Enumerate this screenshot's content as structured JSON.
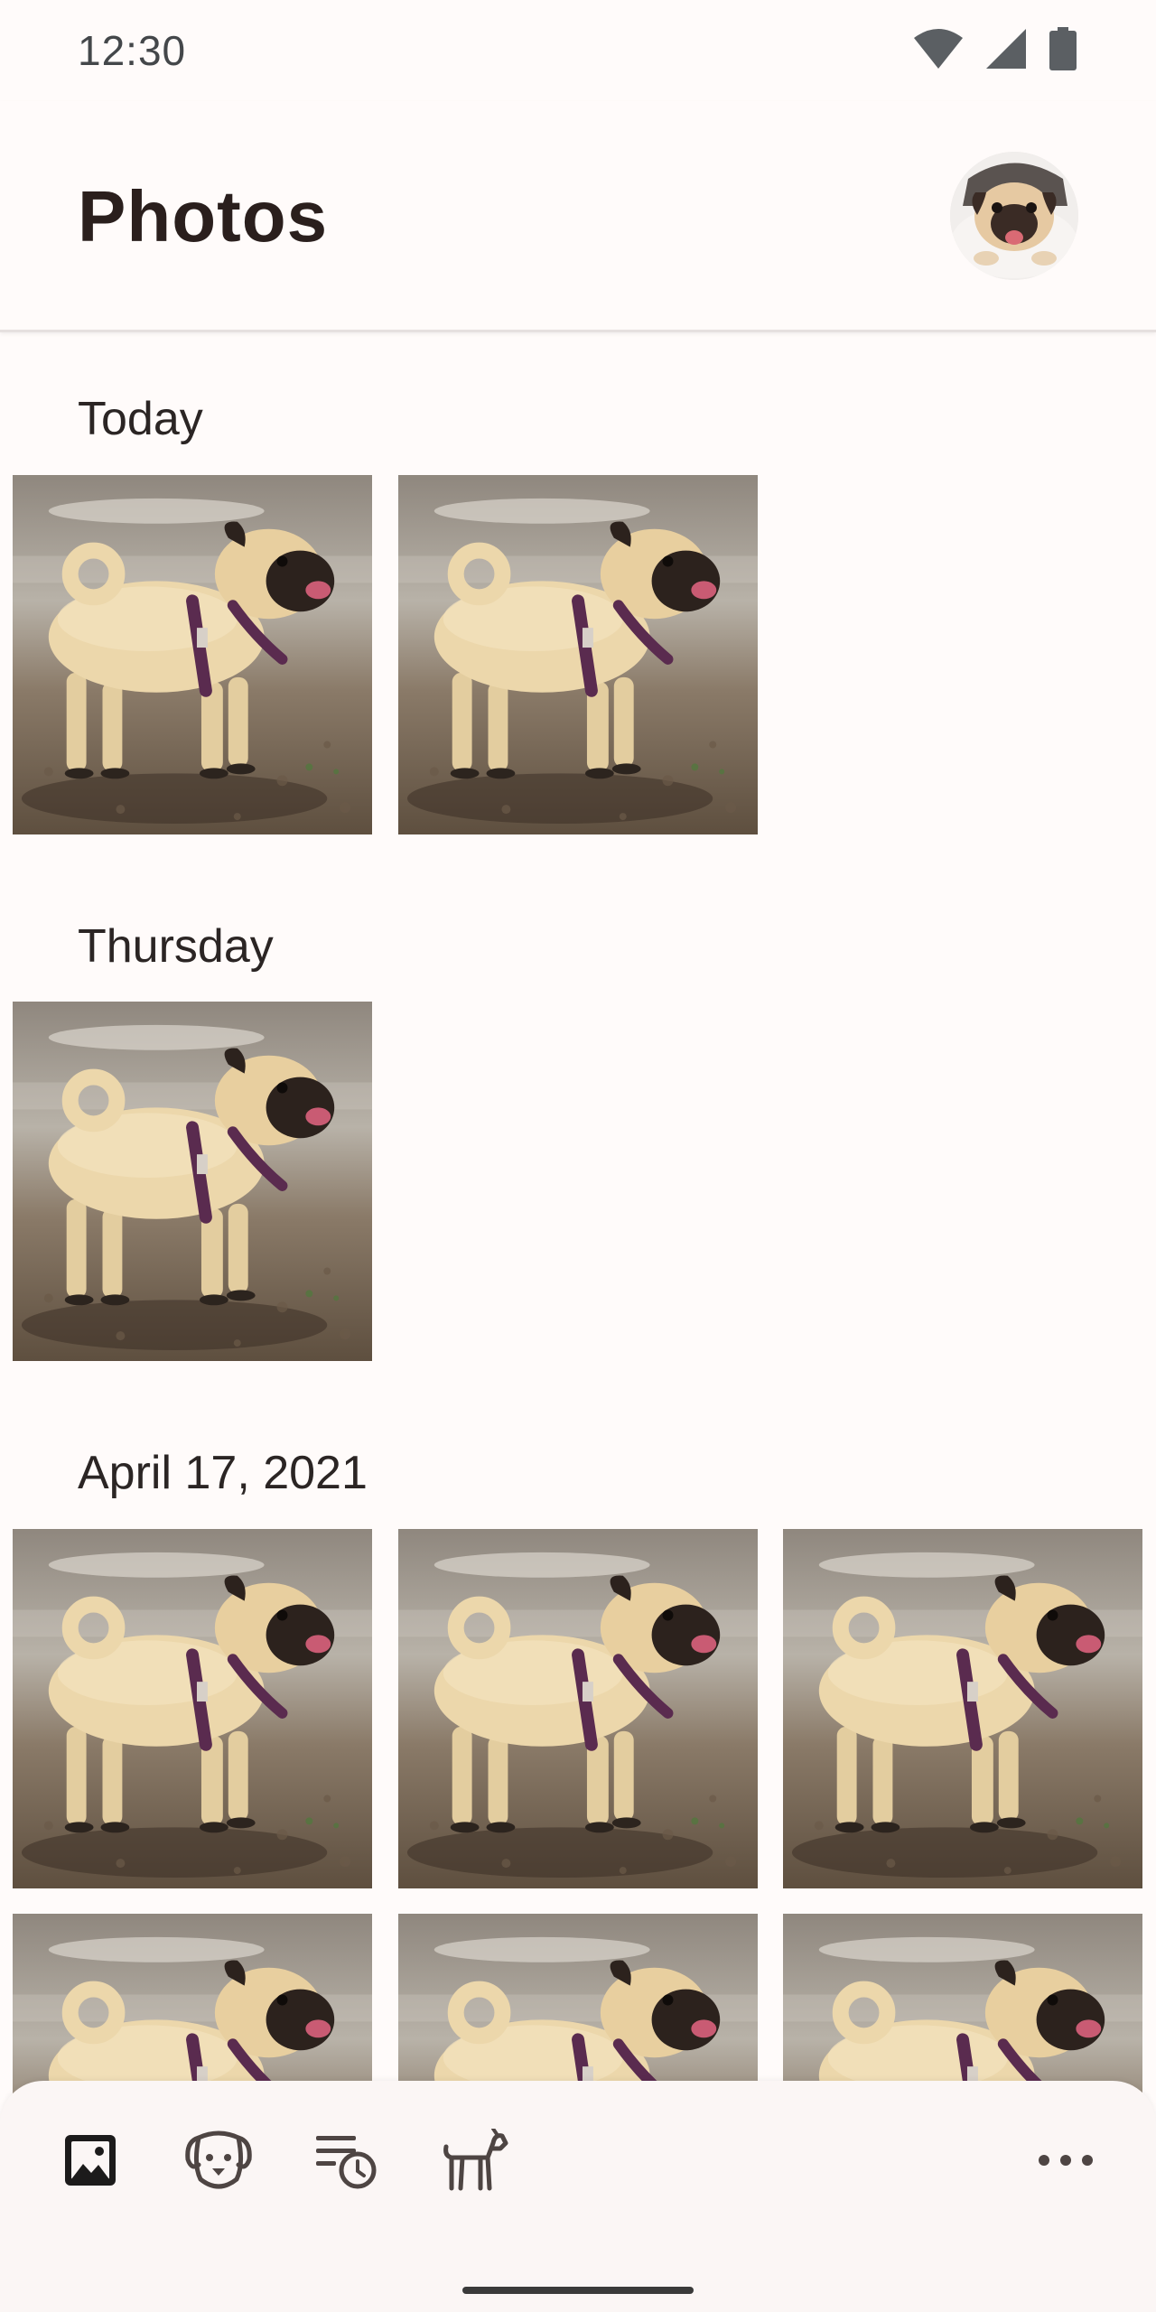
{
  "status_bar": {
    "time": "12:30",
    "icons": [
      "wifi-icon",
      "signal-icon",
      "battery-icon"
    ]
  },
  "app_bar": {
    "title": "Photos",
    "avatar": "pug-avatar"
  },
  "sections": [
    {
      "label": "Today",
      "photo_count": 2
    },
    {
      "label": "Thursday",
      "photo_count": 1
    },
    {
      "label": "April 17, 2021",
      "photo_count": 6
    }
  ],
  "bottom_nav": {
    "items": [
      "photos-icon",
      "dog-face-icon",
      "schedule-list-icon",
      "dog-walk-icon",
      "more-icon"
    ],
    "selected": "photos-icon"
  },
  "colors": {
    "background": "#fffbfa",
    "title": "#2a1f1d",
    "icon": "#4e4543",
    "icon_selected": "#1c1b1b"
  }
}
